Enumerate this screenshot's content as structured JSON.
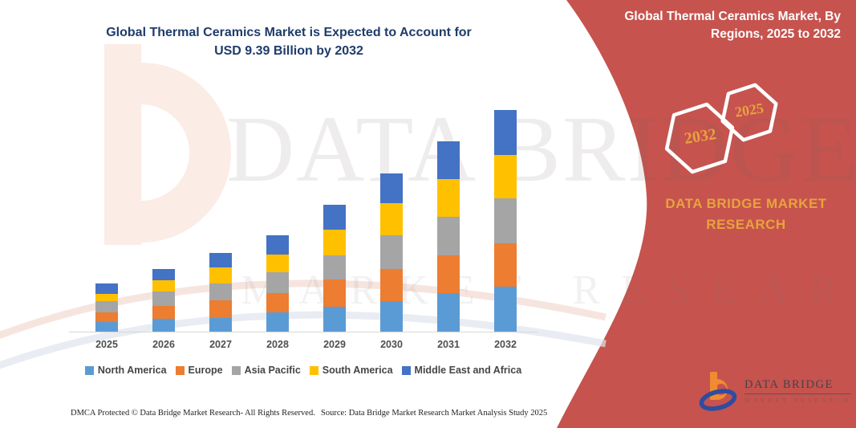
{
  "header": {
    "title_line1": "Global Thermal Ceramics Market is Expected to Account for",
    "title_line2": "USD 9.39 Billion by 2032"
  },
  "sidebar": {
    "title_line1": "Global Thermal Ceramics Market, By",
    "title_line2": "Regions, 2025 to 2032",
    "hexagons": [
      {
        "label": "2032"
      },
      {
        "label": "2025"
      }
    ],
    "org_line1": "DATA BRIDGE MARKET",
    "org_line2": "RESEARCH",
    "logo": {
      "brand": "DATA BRIDGE",
      "tagline": "MARKET RESEARCH"
    },
    "bg_color": "#c6534e",
    "accent_color": "#e7a33e"
  },
  "watermark": {
    "brand_text": "DATA BRIDGE",
    "tagline_text": "MARKET RESEARCH"
  },
  "chart_data": {
    "type": "bar",
    "stacked": true,
    "title": "Global Thermal Ceramics Market is Expected to Account for USD 9.39 Billion by 2032",
    "unit": "USD Billion (estimated from bar heights; no y-axis shown)",
    "legend_position": "bottom",
    "y_axis_visible": false,
    "categories": [
      "2025",
      "2026",
      "2027",
      "2028",
      "2029",
      "2030",
      "2031",
      "2032"
    ],
    "series": [
      {
        "name": "North America",
        "color": "#5B9BD5",
        "values": [
          0.4,
          0.54,
          0.59,
          0.82,
          1.05,
          1.29,
          1.63,
          1.9
        ]
      },
      {
        "name": "Europe",
        "color": "#ED7D31",
        "values": [
          0.4,
          0.53,
          0.74,
          0.81,
          1.16,
          1.36,
          1.6,
          1.85
        ]
      },
      {
        "name": "Asia Pacific",
        "color": "#A5A5A5",
        "values": [
          0.48,
          0.62,
          0.71,
          0.87,
          1.02,
          1.43,
          1.63,
          1.92
        ]
      },
      {
        "name": "South America",
        "color": "#FFC000",
        "values": [
          0.32,
          0.48,
          0.68,
          0.74,
          1.09,
          1.36,
          1.6,
          1.82
        ]
      },
      {
        "name": "Middle East and Africa",
        "color": "#4472C4",
        "values": [
          0.43,
          0.47,
          0.6,
          0.83,
          1.05,
          1.26,
          1.6,
          1.9
        ]
      }
    ],
    "totals": [
      2.03,
      2.64,
      3.32,
      4.07,
      5.37,
      6.7,
      8.06,
      9.39
    ]
  },
  "footer": {
    "left": "DMCA Protected © Data Bridge Market Research- All Rights Reserved.",
    "right": "Source: Data Bridge Market Research Market Analysis Study 2025"
  }
}
